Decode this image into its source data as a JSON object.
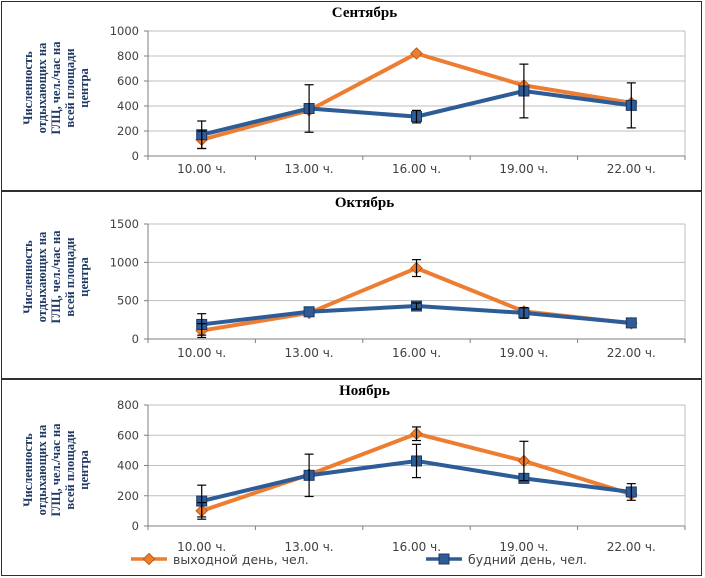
{
  "figure": {
    "y_axis_title": "Численность\nотдыхающих на\nГЛЦ, чел./час на\nвсей площади\nцентра"
  },
  "colors": {
    "weekend": "#ED7D31",
    "weekend_edge": "#C55A11",
    "weekday": "#2E5C97",
    "weekday_edge": "#1F3864",
    "error": "#000000",
    "grid": "#BFBFBF",
    "axis": "#7F7F7F",
    "tick_text": "#404040",
    "title_text": "#000000",
    "ylabel_text": "#1F3864"
  },
  "legend": {
    "position": "bottom",
    "items": [
      {
        "label": "выходной день, чел.",
        "series": "weekend",
        "marker": "diamond"
      },
      {
        "label": "будний день, чел.",
        "series": "weekday",
        "marker": "square"
      }
    ]
  },
  "chart_data": [
    {
      "type": "line",
      "title": "Сентябрь",
      "categories": [
        "10.00 ч.",
        "13.00 ч.",
        "16.00 ч.",
        "19.00 ч.",
        "22.00 ч."
      ],
      "ylim": [
        0,
        1000
      ],
      "ytick_step": 200,
      "grid": true,
      "series": [
        {
          "name": "выходной день, чел.",
          "color_key": "weekend",
          "marker": "diamond",
          "values": [
            130,
            365,
            820,
            565,
            425
          ],
          "errors": [
            70,
            0,
            0,
            0,
            0
          ]
        },
        {
          "name": "будний день, чел.",
          "color_key": "weekday",
          "marker": "square",
          "values": [
            170,
            380,
            315,
            520,
            405
          ],
          "errors": [
            110,
            190,
            50,
            215,
            180
          ]
        }
      ]
    },
    {
      "type": "line",
      "title": "Октябрь",
      "categories": [
        "10.00 ч.",
        "13.00 ч.",
        "16.00 ч.",
        "19.00 ч.",
        "22.00 ч."
      ],
      "ylim": [
        0,
        1500
      ],
      "ytick_step": 500,
      "grid": true,
      "series": [
        {
          "name": "выходной день, чел.",
          "color_key": "weekend",
          "marker": "diamond",
          "values": [
            110,
            340,
            925,
            360,
            205
          ],
          "errors": [
            90,
            0,
            110,
            0,
            0
          ]
        },
        {
          "name": "будний день, чел.",
          "color_key": "weekday",
          "marker": "square",
          "values": [
            190,
            355,
            430,
            340,
            210
          ],
          "errors": [
            140,
            0,
            40,
            70,
            0
          ]
        }
      ]
    },
    {
      "type": "line",
      "title": "Ноябрь",
      "categories": [
        "10.00 ч.",
        "13.00 ч.",
        "16.00 ч.",
        "19.00 ч.",
        "22.00 ч."
      ],
      "ylim": [
        0,
        800
      ],
      "ytick_step": 200,
      "grid": true,
      "series": [
        {
          "name": "выходной день, чел.",
          "color_key": "weekend",
          "marker": "diamond",
          "values": [
            100,
            340,
            610,
            430,
            210
          ],
          "errors": [
            55,
            0,
            45,
            130,
            0
          ]
        },
        {
          "name": "будний день, чел.",
          "color_key": "weekday",
          "marker": "square",
          "values": [
            165,
            335,
            430,
            315,
            225
          ],
          "errors": [
            105,
            140,
            110,
            0,
            55
          ]
        }
      ]
    }
  ]
}
